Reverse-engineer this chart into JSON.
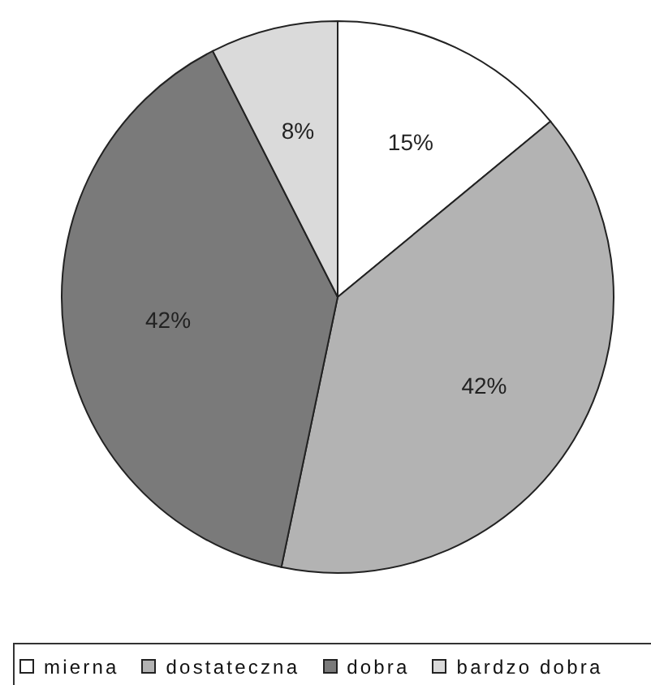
{
  "chart_data": {
    "type": "pie",
    "categories": [
      "mierna",
      "dostateczna",
      "dobra",
      "bardzo dobra"
    ],
    "values": [
      15,
      42,
      42,
      8
    ],
    "colors": [
      "#ffffff",
      "#b3b3b3",
      "#7a7a7a",
      "#dadada"
    ],
    "value_labels": [
      "15%",
      "42%",
      "42%",
      "8%"
    ],
    "legend": "bottom"
  }
}
